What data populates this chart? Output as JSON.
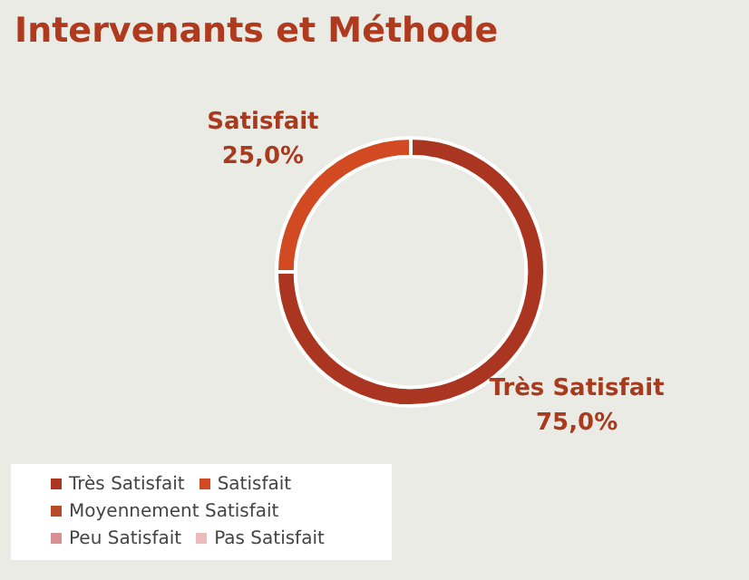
{
  "chart_data": {
    "type": "donut",
    "title": "Intervenants et Méthode",
    "categories": [
      "Très Satisfait",
      "Satisfait",
      "Moyennement Satisfait",
      "Peu Satisfait",
      "Pas Satisfait"
    ],
    "values": [
      75,
      25,
      0,
      0,
      0
    ],
    "value_labels": [
      "75,0%",
      "25,0%",
      null,
      null,
      null
    ],
    "colors": [
      "#aa3520",
      "#d24a22",
      "#b84a2a",
      "#d89090",
      "#eebbbb"
    ],
    "legend": "bottom left"
  }
}
